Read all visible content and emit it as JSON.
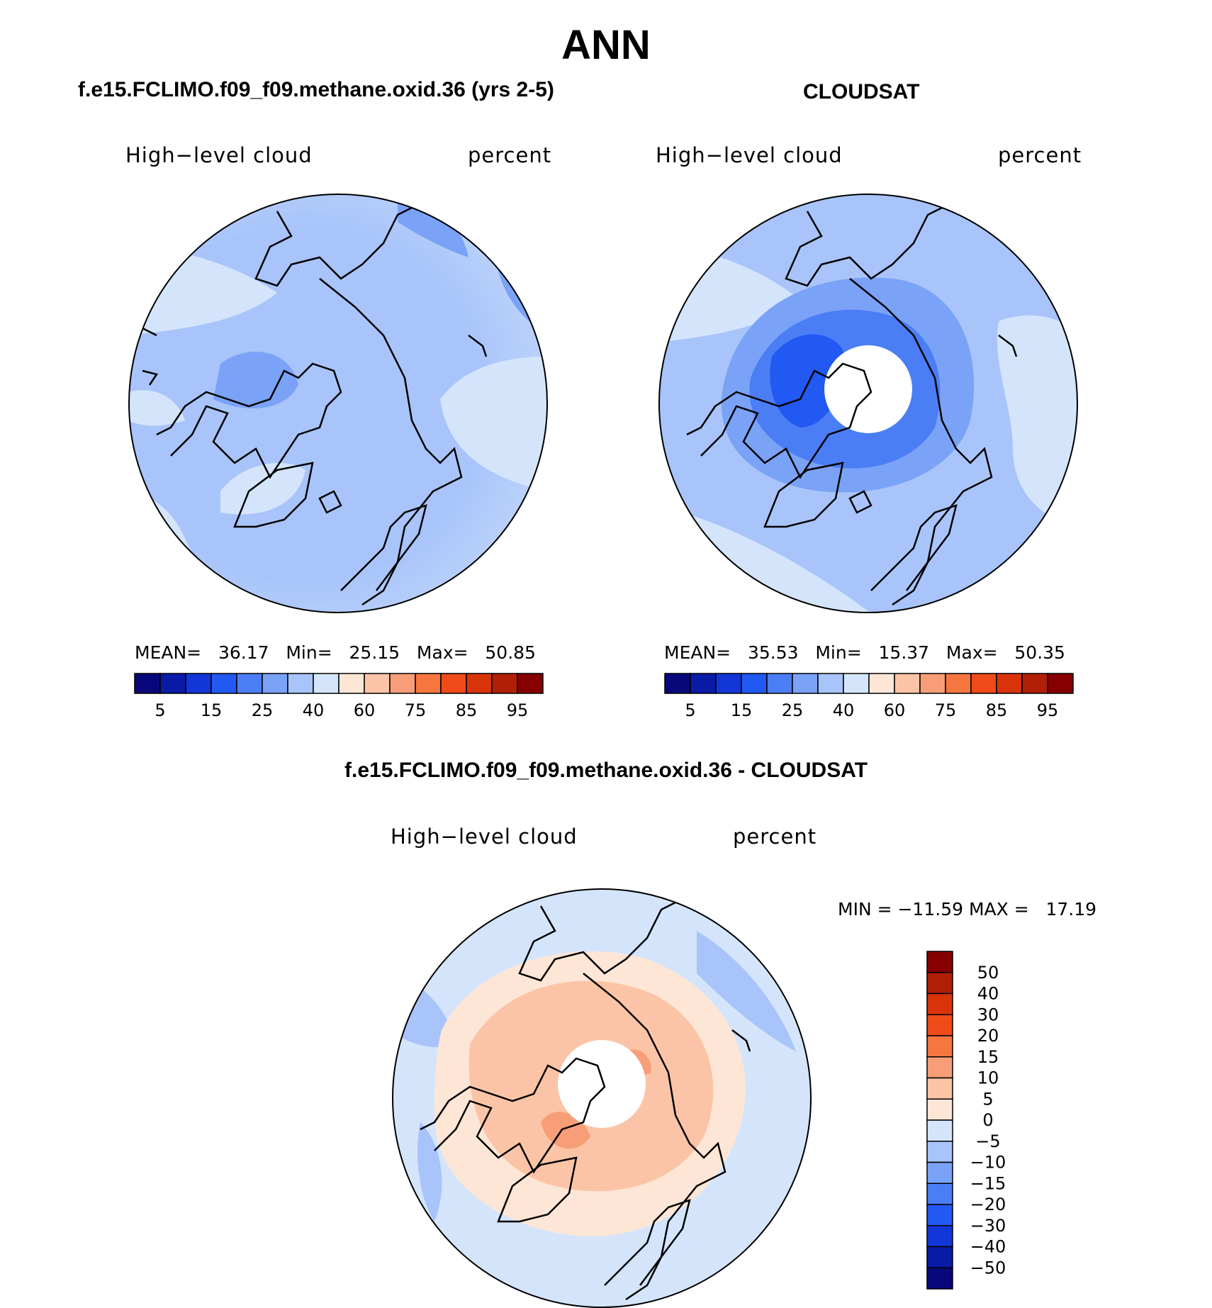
{
  "chart_data": {
    "type": "heatmap",
    "title": "ANN",
    "panels": [
      {
        "id": "model",
        "title": "f.e15.FCLIMO.f09_f09.methane.oxid.36 (yrs 2-5)",
        "variable": "High−level cloud",
        "units": "percent",
        "stats_text": "MEAN=   36.17   Min=   25.15   Max=   50.85",
        "mean": 36.17,
        "min": 25.15,
        "max": 50.85,
        "projection": "north-polar-stereographic"
      },
      {
        "id": "obs",
        "title": "CLOUDSAT",
        "variable": "High−level cloud",
        "units": "percent",
        "stats_text": "MEAN=   35.53   Min=   15.37   Max=   50.35",
        "mean": 35.53,
        "min": 15.37,
        "max": 50.35,
        "projection": "north-polar-stereographic",
        "missing_region": "polar cap"
      },
      {
        "id": "diff",
        "title": "f.e15.FCLIMO.f09_f09.methane.oxid.36 - CLOUDSAT",
        "variable": "High−level cloud",
        "units": "percent",
        "stats_text": "MIN = −11.59 MAX =   17.19",
        "min": -11.59,
        "max": 17.19,
        "projection": "north-polar-stereographic",
        "missing_region": "polar cap"
      }
    ],
    "colorbar_abs": {
      "orientation": "horizontal",
      "colors": [
        "#08087a",
        "#0a1ba8",
        "#1236d8",
        "#2159f2",
        "#4b7ef5",
        "#7aa2f7",
        "#a8c4fa",
        "#d4e5fb",
        "#fde6d6",
        "#fbc4a6",
        "#f79e78",
        "#f5763f",
        "#f04c19",
        "#d93409",
        "#b11f07",
        "#860000"
      ],
      "tick_labels": [
        "5",
        "15",
        "25",
        "40",
        "60",
        "75",
        "85",
        "95"
      ]
    },
    "colorbar_diff": {
      "orientation": "vertical",
      "colors": [
        "#860000",
        "#b11f07",
        "#d93409",
        "#f04c19",
        "#f5763f",
        "#f79e78",
        "#fbc4a6",
        "#fde6d6",
        "#d4e5fb",
        "#a8c4fa",
        "#7aa2f7",
        "#4b7ef5",
        "#2159f2",
        "#1236d8",
        "#0a1ba8",
        "#08087a"
      ],
      "tick_labels": [
        "50",
        "40",
        "30",
        "20",
        "15",
        "10",
        "5",
        "0",
        "−5",
        "−10",
        "−15",
        "−20",
        "−30",
        "−40",
        "−50"
      ]
    }
  }
}
